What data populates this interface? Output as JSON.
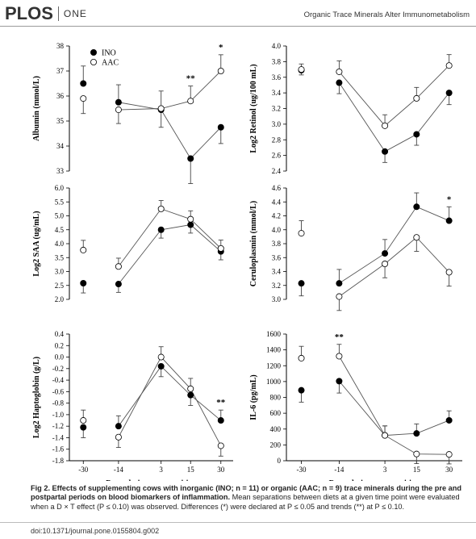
{
  "header": {
    "logo_text": "PLOS",
    "logo_suffix": "ONE",
    "running_title": "Organic Trace Minerals Alter Immunometabolism"
  },
  "caption": {
    "label": "Fig 2. Effects of supplementing cows with inorganic (INO; n = 11) or organic (AAC; n = 9) trace minerals during the pre and postpartal periods on blood biomarkers of inflammation.",
    "text": " Mean separations between diets at a given time point were evaluated when a D × T effect (P ≤ 0.10) was observed. Differences (*) were declared at P ≤ 0.05 and trends (**) at P ≤ 0.10."
  },
  "doi": "doi:10.1371/journal.pone.0155804.g002",
  "colors": {
    "INO": "#000000",
    "AAC": "#ffffff",
    "lines": "#555555"
  },
  "chart_data": [
    {
      "type": "line",
      "ylabel": "Albumin (mmol/L)",
      "ylim": [
        33,
        38
      ],
      "yticks": [
        "33",
        "34",
        "35",
        "36",
        "37",
        "38"
      ],
      "categories": [
        "-30",
        "-14",
        "3",
        "15",
        "30"
      ],
      "xticks_shown": false,
      "legend": {
        "placement": "top-left",
        "entries": [
          "INO",
          "AAC"
        ]
      },
      "series": [
        {
          "name": "INO",
          "values": [
            36.5,
            35.75,
            35.45,
            33.5,
            34.75
          ],
          "errors": [
            0.7,
            0.7,
            0.7,
            1.0,
            0.65
          ]
        },
        {
          "name": "AAC",
          "values": [
            35.9,
            35.45,
            35.5,
            35.8,
            37.0
          ],
          "errors": [
            0.6,
            0.55,
            0.7,
            0.6,
            0.65
          ]
        }
      ],
      "annotations": [
        {
          "at": "15",
          "text": "**"
        },
        {
          "at": "30",
          "text": "*"
        }
      ]
    },
    {
      "type": "line",
      "ylabel": "Log2 Retinol (ug/100 mL)",
      "ylim": [
        2.4,
        4.0
      ],
      "yticks": [
        "2.4",
        "2.6",
        "2.8",
        "3.0",
        "3.2",
        "3.4",
        "3.6",
        "3.8",
        "4.0"
      ],
      "categories": [
        "-30",
        "-14",
        "3",
        "15",
        "30"
      ],
      "xticks_shown": false,
      "series": [
        {
          "name": "INO",
          "values": [
            3.69,
            3.53,
            2.65,
            2.87,
            3.4
          ],
          "errors": [
            0.06,
            0.14,
            0.14,
            0.14,
            0.15
          ]
        },
        {
          "name": "AAC",
          "values": [
            3.7,
            3.67,
            2.98,
            3.33,
            3.75
          ],
          "errors": [
            0.07,
            0.14,
            0.14,
            0.14,
            0.14
          ]
        }
      ],
      "annotations": []
    },
    {
      "type": "line",
      "ylabel": "Log2 SAA (ug/mL)",
      "ylim": [
        2.0,
        6.0
      ],
      "yticks": [
        "2.0",
        "2.5",
        "3.0",
        "3.5",
        "4.0",
        "4.5",
        "5.0",
        "5.5",
        "6.0"
      ],
      "categories": [
        "-30",
        "-14",
        "3",
        "15",
        "30"
      ],
      "xticks_shown": false,
      "series": [
        {
          "name": "INO",
          "values": [
            2.58,
            2.55,
            4.5,
            4.68,
            3.72
          ],
          "errors": [
            0.35,
            0.3,
            0.3,
            0.3,
            0.3
          ]
        },
        {
          "name": "AAC",
          "values": [
            3.77,
            3.18,
            5.25,
            4.88,
            3.83
          ],
          "errors": [
            0.35,
            0.3,
            0.3,
            0.3,
            0.3
          ]
        }
      ],
      "annotations": []
    },
    {
      "type": "line",
      "ylabel": "Ceruloplasmin (mmol/L)",
      "ylim": [
        3.0,
        4.6
      ],
      "yticks": [
        "3.0",
        "3.2",
        "3.4",
        "3.6",
        "3.8",
        "4.0",
        "4.2",
        "4.4",
        "4.6"
      ],
      "categories": [
        "-30",
        "-14",
        "3",
        "15",
        "30"
      ],
      "xticks_shown": false,
      "series": [
        {
          "name": "INO",
          "values": [
            3.23,
            3.23,
            3.66,
            4.33,
            4.13
          ],
          "errors": [
            0.18,
            0.2,
            0.2,
            0.2,
            0.2
          ]
        },
        {
          "name": "AAC",
          "values": [
            3.95,
            3.04,
            3.51,
            3.89,
            3.39
          ],
          "errors": [
            0.18,
            0.2,
            0.2,
            0.2,
            0.2
          ]
        }
      ],
      "annotations": [
        {
          "at": "30",
          "text": "*"
        }
      ]
    },
    {
      "type": "line",
      "ylabel": "Log2 Haptoglobin (g/L)",
      "ylim": [
        -1.8,
        0.4
      ],
      "yticks": [
        "-1.8",
        "-1.6",
        "-1.4",
        "-1.2",
        "-1.0",
        "-0.8",
        "-0.6",
        "-0.4",
        "-0.2",
        "0.0",
        "0.2",
        "0.4"
      ],
      "categories": [
        "-30",
        "-14",
        "3",
        "15",
        "30"
      ],
      "xticks_shown": true,
      "xlabel": "Day relative to parturition",
      "series": [
        {
          "name": "INO",
          "values": [
            -1.22,
            -1.2,
            -0.16,
            -0.66,
            -1.1
          ],
          "errors": [
            0.18,
            0.18,
            0.18,
            0.18,
            0.18
          ]
        },
        {
          "name": "AAC",
          "values": [
            -1.1,
            -1.39,
            0.0,
            -0.55,
            -1.54
          ],
          "errors": [
            0.18,
            0.18,
            0.18,
            0.18,
            0.18
          ]
        }
      ],
      "annotations": [
        {
          "at": "30",
          "text": "**"
        }
      ]
    },
    {
      "type": "line",
      "ylabel": "IL-6 (pg/mL)",
      "ylim": [
        0,
        1600
      ],
      "yticks": [
        "0",
        "200",
        "400",
        "600",
        "800",
        "1000",
        "1200",
        "1400",
        "1600"
      ],
      "categories": [
        "-30",
        "-14",
        "3",
        "15",
        "30"
      ],
      "xticks_shown": true,
      "xlabel": "Day relative to parturition",
      "series": [
        {
          "name": "INO",
          "values": [
            890,
            1005,
            320,
            345,
            510
          ],
          "errors": [
            150,
            150,
            120,
            120,
            120
          ]
        },
        {
          "name": "AAC",
          "values": [
            1295,
            1320,
            320,
            85,
            80
          ],
          "errors": [
            150,
            150,
            120,
            120,
            120
          ]
        }
      ],
      "annotations": [
        {
          "at": "-14",
          "text": "**"
        }
      ]
    }
  ]
}
